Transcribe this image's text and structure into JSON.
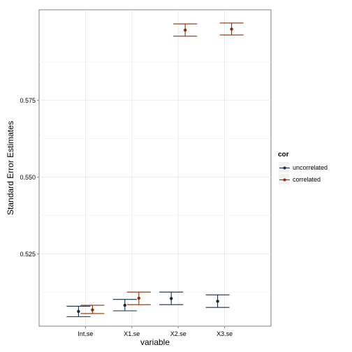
{
  "chart_data": {
    "type": "scatter",
    "title": "",
    "xlabel": "variable",
    "ylabel": "Standard Error Estimates",
    "categories": [
      "Int.se",
      "X1.se",
      "X2.se",
      "X3.se"
    ],
    "y_ticks": [
      "0.525",
      "0.550",
      "0.575"
    ],
    "ylim": [
      0.5015,
      0.6045
    ],
    "grid": true,
    "legend": {
      "title": "cor",
      "placement": "right"
    },
    "series": [
      {
        "name": "uncorrelated",
        "color": "#132b43",
        "y": [
          0.5063,
          0.5083,
          0.5105,
          0.5096
        ],
        "ymin": [
          0.5046,
          0.5065,
          0.5085,
          0.5076
        ],
        "ymax": [
          0.508,
          0.5102,
          0.5126,
          0.5117
        ]
      },
      {
        "name": "correlated",
        "color": "#8c2d04",
        "y": [
          0.5068,
          0.5106,
          0.5979,
          0.5982
        ],
        "ymin": [
          0.5056,
          0.5085,
          0.5959,
          0.5963
        ],
        "ymax": [
          0.5083,
          0.5126,
          0.5999,
          0.6002
        ]
      }
    ]
  }
}
